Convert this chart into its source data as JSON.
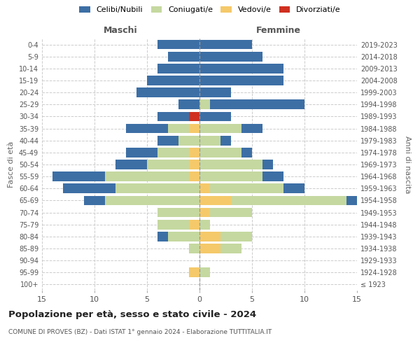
{
  "age_groups": [
    "100+",
    "95-99",
    "90-94",
    "85-89",
    "80-84",
    "75-79",
    "70-74",
    "65-69",
    "60-64",
    "55-59",
    "50-54",
    "45-49",
    "40-44",
    "35-39",
    "30-34",
    "25-29",
    "20-24",
    "15-19",
    "10-14",
    "5-9",
    "0-4"
  ],
  "birth_years": [
    "≤ 1923",
    "1924-1928",
    "1929-1933",
    "1934-1938",
    "1939-1943",
    "1944-1948",
    "1949-1953",
    "1954-1958",
    "1959-1963",
    "1964-1968",
    "1969-1973",
    "1974-1978",
    "1979-1983",
    "1984-1988",
    "1989-1993",
    "1994-1998",
    "1999-2003",
    "2004-2008",
    "2009-2013",
    "2014-2018",
    "2019-2023"
  ],
  "colors": {
    "celibe": "#3d6fa5",
    "coniugato": "#c5d8a0",
    "vedovo": "#f5c96a",
    "divorziato": "#d03020"
  },
  "males": {
    "celibe": [
      0,
      0,
      0,
      0,
      1,
      0,
      0,
      2,
      5,
      5,
      3,
      3,
      2,
      4,
      3,
      2,
      6,
      5,
      4,
      3,
      4
    ],
    "coniugato": [
      0,
      0,
      0,
      1,
      3,
      3,
      4,
      9,
      8,
      8,
      4,
      3,
      2,
      2,
      0,
      0,
      0,
      0,
      0,
      0,
      0
    ],
    "vedovo": [
      0,
      1,
      0,
      0,
      0,
      1,
      0,
      0,
      0,
      1,
      1,
      1,
      0,
      1,
      0,
      0,
      0,
      0,
      0,
      0,
      0
    ],
    "divorziato": [
      0,
      0,
      0,
      0,
      0,
      0,
      0,
      0,
      0,
      0,
      0,
      0,
      0,
      0,
      1,
      0,
      0,
      0,
      0,
      0,
      0
    ]
  },
  "females": {
    "nubile": [
      0,
      0,
      0,
      0,
      0,
      0,
      0,
      1,
      2,
      2,
      1,
      1,
      1,
      2,
      3,
      9,
      3,
      8,
      8,
      6,
      5
    ],
    "coniugata": [
      0,
      1,
      0,
      2,
      3,
      1,
      4,
      11,
      7,
      6,
      6,
      4,
      2,
      4,
      0,
      1,
      0,
      0,
      0,
      0,
      0
    ],
    "vedova": [
      0,
      0,
      0,
      2,
      2,
      0,
      1,
      3,
      1,
      0,
      0,
      0,
      0,
      0,
      0,
      0,
      0,
      0,
      0,
      0,
      0
    ],
    "divorziata": [
      0,
      0,
      0,
      0,
      0,
      0,
      0,
      0,
      0,
      0,
      0,
      0,
      0,
      0,
      0,
      0,
      0,
      0,
      0,
      0,
      0
    ]
  },
  "xlim": 15,
  "title": "Popolazione per età, sesso e stato civile - 2024",
  "subtitle": "COMUNE DI PROVES (BZ) - Dati ISTAT 1° gennaio 2024 - Elaborazione TUTTITALIA.IT",
  "xlabel_left": "Maschi",
  "xlabel_right": "Femmine",
  "ylabel_left": "Fasce di età",
  "ylabel_right": "Anni di nascita",
  "legend_labels": [
    "Celibi/Nubili",
    "Coniugati/e",
    "Vedovi/e",
    "Divorziati/e"
  ],
  "bg_color": "#ffffff",
  "grid_color": "#cccccc"
}
